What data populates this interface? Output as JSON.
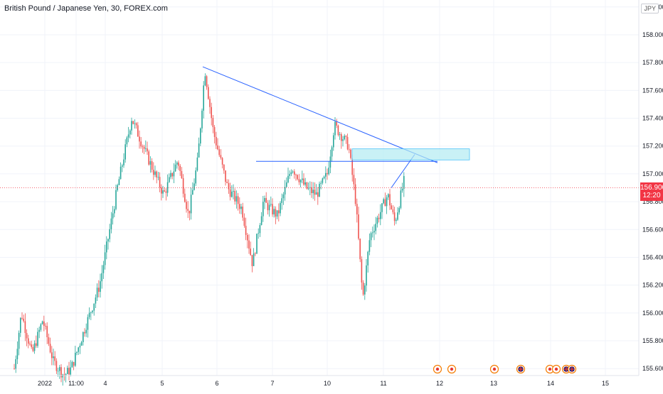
{
  "header": {
    "title": "British Pound / Japanese Yen, 30, FOREX.com",
    "currency": "JPY"
  },
  "price_tag": {
    "price": "156.900",
    "countdown": "12:20"
  },
  "colors": {
    "up": "#26a69a",
    "down": "#ef5350",
    "trend": "#2962ff",
    "zone_fill": "#b2ebf2",
    "zone_stroke": "#4fc3f7",
    "last_price": "#f23645"
  },
  "event_icons": [
    "red-dot",
    "red-dot",
    "red-dot",
    "uk-flag",
    "red-dot",
    "red-dot",
    "uk-flag",
    "uk-flag"
  ],
  "chart_data": {
    "type": "candlestick",
    "title": "British Pound / Japanese Yen, 30, FOREX.com",
    "y_ticks": [
      "158.200",
      "158.000",
      "157.800",
      "157.600",
      "157.400",
      "157.200",
      "157.000",
      "156.800",
      "156.600",
      "156.400",
      "156.200",
      "156.000",
      "155.800",
      "155.600"
    ],
    "x_ticks": [
      "2022",
      "11:00",
      "4",
      "5",
      "6",
      "7",
      "10",
      "11",
      "12",
      "13",
      "14",
      "15"
    ],
    "ylim": [
      155.55,
      158.25
    ],
    "last_price": 156.9,
    "price_path": [
      {
        "t": 0.0,
        "p": 155.6
      },
      {
        "t": 1.0,
        "p": 156.0
      },
      {
        "t": 2.0,
        "p": 155.7
      },
      {
        "t": 3.0,
        "p": 155.95
      },
      {
        "t": 4.0,
        "p": 155.65
      },
      {
        "t": 5.0,
        "p": 155.55
      },
      {
        "t": 6.0,
        "p": 155.6
      },
      {
        "t": 7.0,
        "p": 156.2
      },
      {
        "t": 8.0,
        "p": 156.9
      },
      {
        "t": 9.0,
        "p": 157.4
      },
      {
        "t": 10.0,
        "p": 157.15
      },
      {
        "t": 11.0,
        "p": 156.85
      },
      {
        "t": 12.0,
        "p": 157.1
      },
      {
        "t": 13.0,
        "p": 156.7
      },
      {
        "t": 14.0,
        "p": 157.1
      },
      {
        "t": 15.0,
        "p": 157.75
      },
      {
        "t": 16.0,
        "p": 157.3
      },
      {
        "t": 17.0,
        "p": 156.9
      },
      {
        "t": 18.0,
        "p": 156.75
      },
      {
        "t": 19.0,
        "p": 156.35
      },
      {
        "t": 20.0,
        "p": 156.8
      },
      {
        "t": 21.0,
        "p": 156.7
      },
      {
        "t": 22.0,
        "p": 157.05
      },
      {
        "t": 23.0,
        "p": 156.9
      },
      {
        "t": 24.0,
        "p": 156.85
      },
      {
        "t": 25.0,
        "p": 157.0
      },
      {
        "t": 26.0,
        "p": 157.35
      },
      {
        "t": 27.0,
        "p": 157.2
      },
      {
        "t": 28.0,
        "p": 156.8
      },
      {
        "t": 29.0,
        "p": 156.1
      },
      {
        "t": 30.0,
        "p": 156.55
      },
      {
        "t": 31.0,
        "p": 156.85
      },
      {
        "t": 32.0,
        "p": 156.65
      },
      {
        "t": 33.0,
        "p": 156.95
      }
    ],
    "trendlines": [
      {
        "t1": 15.0,
        "p1": 157.77,
        "t2": 39.7,
        "p2": 157.08
      },
      {
        "t1": 21.0,
        "p1": 157.09,
        "t2": 40.0,
        "p2": 157.09
      },
      {
        "t1": 32.6,
        "p1": 156.9,
        "t2": 36.5,
        "p2": 157.14
      }
    ],
    "zone": {
      "t1": 30.0,
      "p1": 157.18,
      "t2": 40.2,
      "p2": 157.1
    }
  }
}
